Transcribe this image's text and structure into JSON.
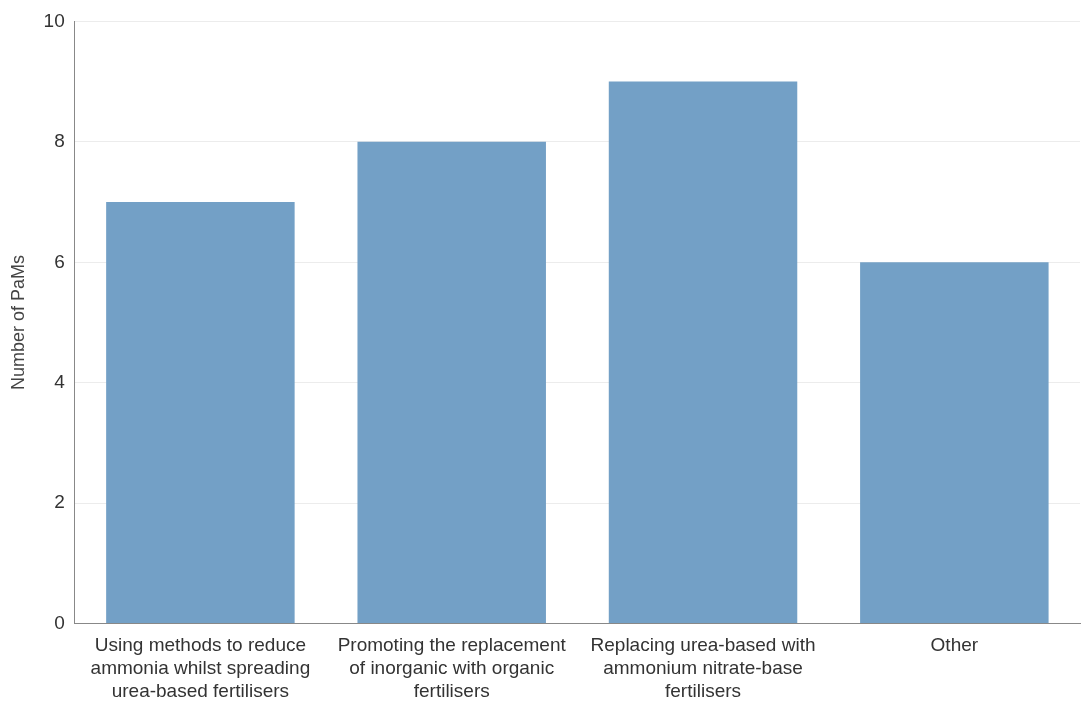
{
  "chart_data": {
    "type": "bar",
    "ylabel": "Number of PaMs",
    "categories": [
      "Using methods to reduce ammonia whilst spreading urea-based fertilisers",
      "Promoting the replacement of inorganic with organic fertilisers",
      "Replacing urea-based with ammonium nitrate-base fertilisers",
      "Other"
    ],
    "values": [
      7,
      8,
      9,
      6
    ],
    "color": "#73a0c6",
    "ylim": [
      0,
      10
    ],
    "yticks": [
      0,
      2,
      4,
      6,
      8,
      10
    ],
    "grid": "y",
    "legend": false
  }
}
